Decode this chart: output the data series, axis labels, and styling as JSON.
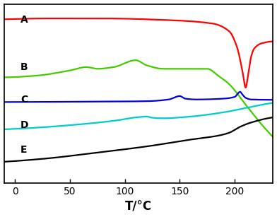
{
  "title": "",
  "xlabel": "T/°C",
  "xlim": [
    -10,
    235
  ],
  "ylim": [
    0.0,
    1.05
  ],
  "xticks": [
    0,
    50,
    100,
    150,
    200
  ],
  "background_color": "#ffffff",
  "curves": {
    "A": {
      "color": "#ff0000"
    },
    "B": {
      "color": "#44cc00"
    },
    "C": {
      "color": "#0000dd"
    },
    "D": {
      "color": "#00cccc"
    },
    "E": {
      "color": "#000000"
    }
  },
  "label_positions": [
    [
      "A",
      5,
      0.955
    ],
    [
      "B",
      5,
      0.68
    ],
    [
      "C",
      5,
      0.49
    ],
    [
      "D",
      5,
      0.34
    ],
    [
      "E",
      5,
      0.195
    ]
  ]
}
